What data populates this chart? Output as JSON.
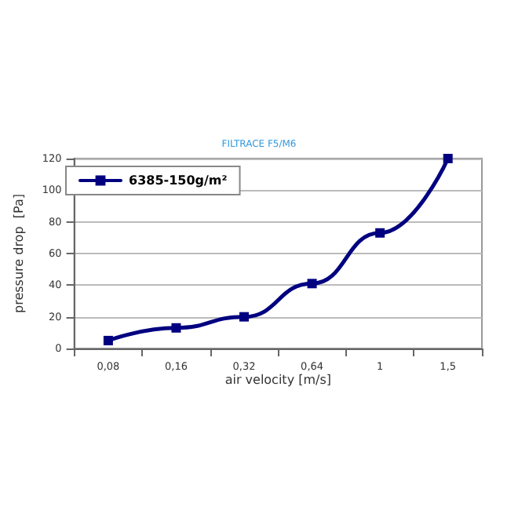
{
  "chart_data": {
    "type": "line",
    "title": "FILTRACE F5/M6",
    "xlabel": "air velocity [m/s]",
    "ylabel": "pressure drop  [Pa]",
    "categories": [
      "0,08",
      "0,16",
      "0,32",
      "0,64",
      "1",
      "1,5"
    ],
    "series": [
      {
        "name": "6385-150g/m²",
        "color": "#000080",
        "values": [
          5,
          13,
          20,
          41,
          73,
          120
        ]
      }
    ],
    "ylim": [
      0,
      120
    ],
    "yticks": [
      0,
      20,
      40,
      60,
      80,
      100,
      120
    ],
    "grid": "y",
    "legend": "top left",
    "marker": "square",
    "line_style": "solid"
  }
}
